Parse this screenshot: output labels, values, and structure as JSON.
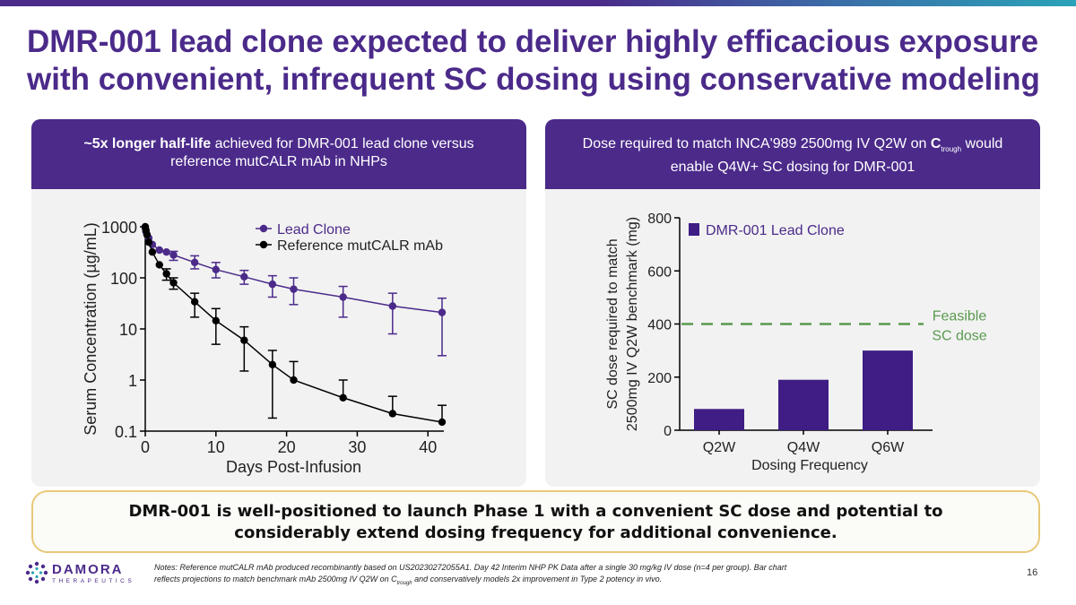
{
  "slide": {
    "title_line1": "DMR-001 lead clone expected to deliver highly efficacious exposure",
    "title_line2": "with convenient, infrequent SC dosing using conservative modeling",
    "page_number": "16"
  },
  "left_panel": {
    "header_bold": "~5x longer half-life",
    "header_rest1": " achieved for DMR-001 lead clone versus",
    "header_line2": "reference mutCALR mAb in NHPs"
  },
  "right_panel": {
    "header_part1": "Dose required to match INCA'989 2500mg IV Q2W on ",
    "header_c": "C",
    "header_sub": "trough",
    "header_part2": " would",
    "header_line2": "enable Q4W+ SC dosing for DMR-001"
  },
  "callout": {
    "line1": "DMR-001 is well-positioned to launch Phase 1 with a convenient SC dose and potential to",
    "line2": "considerably extend dosing frequency for additional convenience."
  },
  "footer": {
    "logo_name": "DAMORA",
    "logo_sub": "THERAPEUTICS",
    "notes_line1": "Notes: Reference mutCALR mAb produced recombinantly based on US20230272055A1. Day 42 Interim NHP PK Data after a single 30 mg/kg IV dose (n=4 per group). Bar chart",
    "notes_line2a": "reflects projections to match benchmark mAb 2500mg IV Q2W on C",
    "notes_sub": "trough",
    "notes_line2b": " and conservatively models 2x improvement in Type 2 potency in vivo."
  },
  "colors": {
    "brand_purple": "#4b2a8a",
    "bar_purple": "#3f1d84",
    "feasible_green": "#5a9a50",
    "callout_border": "#e8c878"
  },
  "chart_data": [
    {
      "type": "line",
      "xlabel": "Days Post-Infusion",
      "ylabel": "Serum Concentration (µg/mL)",
      "xlim": [
        0,
        42
      ],
      "ylim": [
        0.1,
        1000
      ],
      "yscale": "log",
      "xticks": [
        "0",
        "10",
        "20",
        "30",
        "40"
      ],
      "yticks": [
        "0.1",
        "1",
        "10",
        "100",
        "1000"
      ],
      "legend_placement": "top-right",
      "series": [
        {
          "name": "Lead Clone",
          "color": "#4b2a8a",
          "marker": "circle",
          "x": [
            0,
            0.1,
            0.25,
            0.5,
            1,
            2,
            3,
            4,
            7,
            10,
            14,
            18,
            21,
            28,
            35,
            42
          ],
          "y": [
            950,
            800,
            700,
            600,
            450,
            350,
            320,
            280,
            200,
            145,
            105,
            75,
            60,
            42,
            28,
            21
          ],
          "err_low": [
            null,
            null,
            null,
            null,
            null,
            null,
            null,
            220,
            150,
            100,
            75,
            42,
            30,
            17,
            8,
            3
          ],
          "err_high": [
            null,
            null,
            null,
            null,
            null,
            null,
            null,
            330,
            270,
            200,
            140,
            110,
            100,
            68,
            50,
            40
          ]
        },
        {
          "name": "Reference mutCALR mAb",
          "color": "#000000",
          "marker": "circle",
          "x": [
            0,
            0.1,
            0.25,
            0.5,
            1,
            2,
            3,
            4,
            7,
            10,
            14,
            18,
            21,
            28,
            35,
            42
          ],
          "y": [
            1000,
            850,
            700,
            500,
            320,
            180,
            120,
            80,
            34,
            14.5,
            6,
            2,
            1,
            0.45,
            0.22,
            0.15
          ],
          "err_low": [
            null,
            null,
            null,
            null,
            null,
            null,
            90,
            60,
            17,
            5,
            1.5,
            0.18,
            null,
            null,
            null,
            null
          ],
          "err_high": [
            null,
            null,
            null,
            null,
            null,
            null,
            150,
            100,
            50,
            25,
            11,
            3.8,
            2.3,
            1,
            0.48,
            0.32
          ]
        }
      ]
    },
    {
      "type": "bar",
      "xlabel": "Dosing Frequency",
      "ylabel_line1": "SC dose required to match",
      "ylabel_line2": "2500mg IV Q2W benchmark (mg)",
      "categories": [
        "Q2W",
        "Q4W",
        "Q6W"
      ],
      "ylim": [
        0,
        800
      ],
      "yticks": [
        "0",
        "200",
        "400",
        "600",
        "800"
      ],
      "series": [
        {
          "name": "DMR-001 Lead Clone",
          "values": [
            80,
            190,
            300
          ]
        }
      ],
      "reference_line": {
        "value": 400,
        "label_line1": "Feasible",
        "label_line2": "SC dose"
      },
      "legend_placement": "top-left"
    }
  ]
}
